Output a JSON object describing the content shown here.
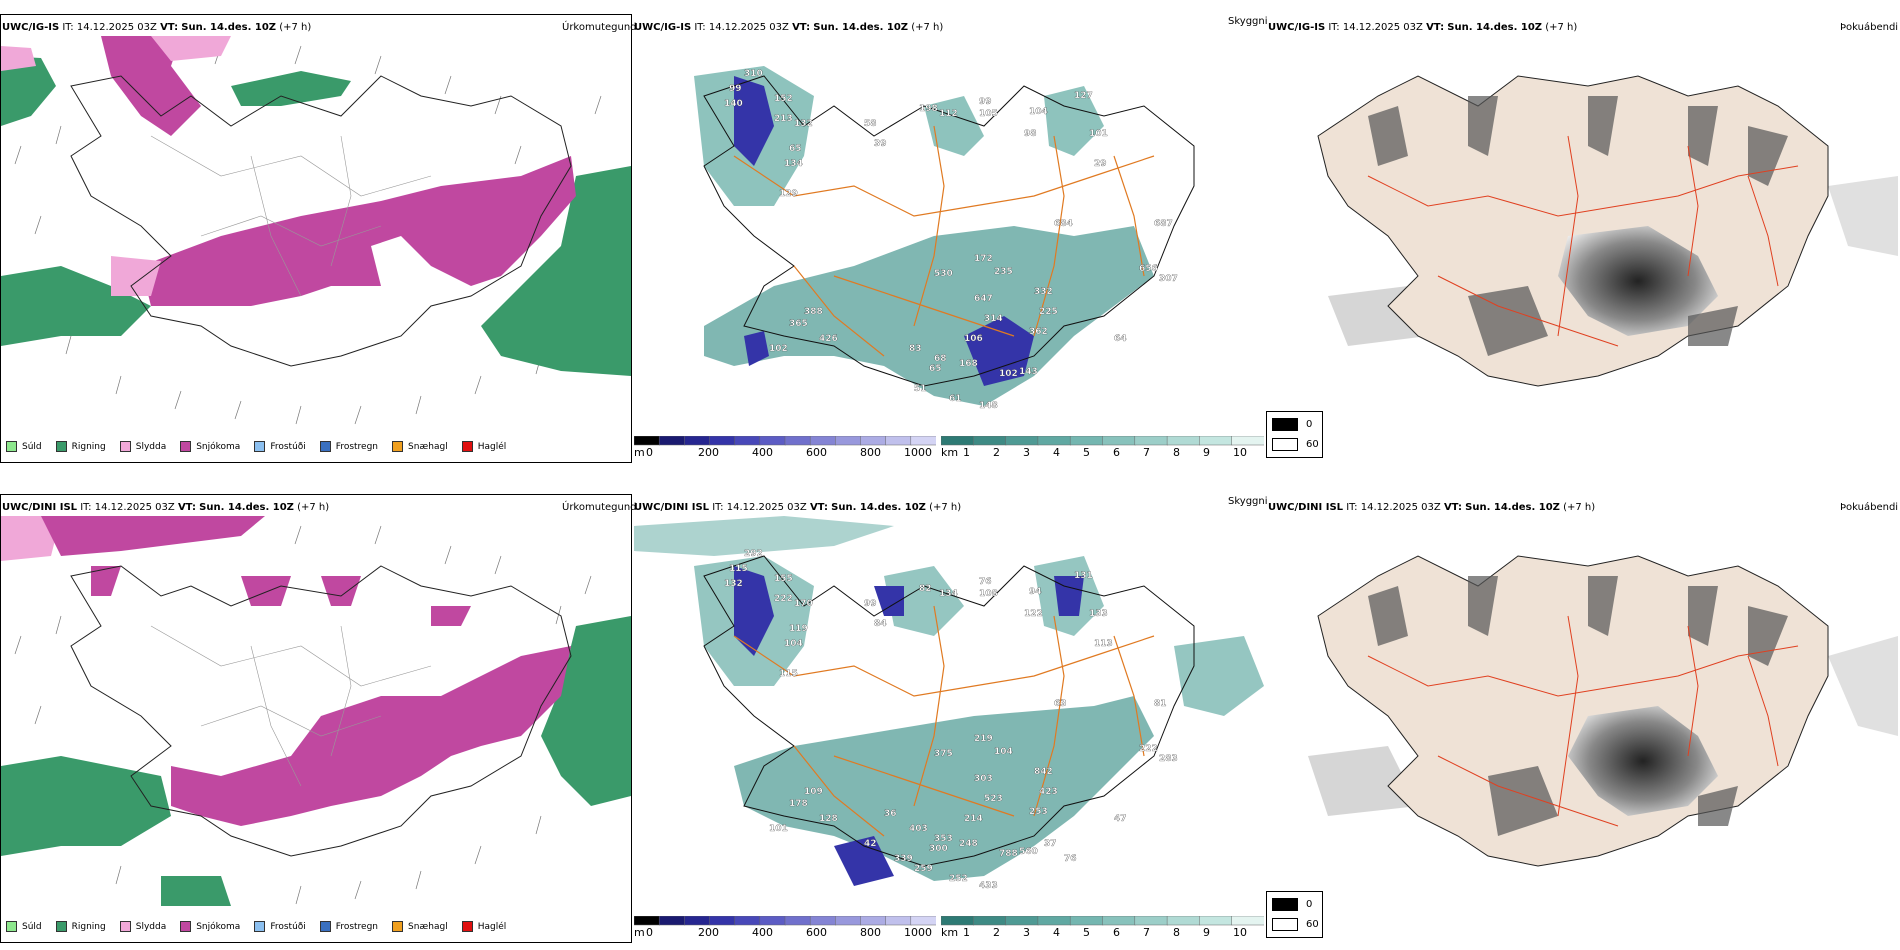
{
  "rows": [
    {
      "model": "UWC/IG-IS",
      "it_label": "IT:",
      "it_value": "14.12.2025 03Z",
      "vt_label": "VT:",
      "vt_value": "Sun. 14.des. 10Z",
      "lead": "(+7 h)"
    },
    {
      "model": "UWC/DINI ISL",
      "it_label": "IT:",
      "it_value": "14.12.2025 03Z",
      "vt_label": "VT:",
      "vt_value": "Sun. 14.des. 10Z",
      "lead": "(+7 h)"
    }
  ],
  "panel_titles": {
    "precip_type": "Úrkomutegund",
    "clouds": "Skyggni",
    "fog": "Þokuábendi"
  },
  "precip_legend": [
    {
      "label": "Súld",
      "color": "#8ee88e"
    },
    {
      "label": "Rigning",
      "color": "#3a9a6a"
    },
    {
      "label": "Slydda",
      "color": "#f0a8d8"
    },
    {
      "label": "Snjókoma",
      "color": "#c048a0"
    },
    {
      "label": "Frostúði",
      "color": "#8cc0f0"
    },
    {
      "label": "Frostregn",
      "color": "#3a70c0"
    },
    {
      "label": "Snæhagl",
      "color": "#f0a020"
    },
    {
      "label": "Haglél",
      "color": "#e01010"
    }
  ],
  "colorbar_m": {
    "unit": "m",
    "ticks": [
      "0",
      "200",
      "400",
      "600",
      "800",
      "1000"
    ],
    "colors": [
      "#000000",
      "#1a1a70",
      "#262690",
      "#3434a8",
      "#4848b8",
      "#5c5cc4",
      "#7070cc",
      "#8484d4",
      "#9898dc",
      "#acace4",
      "#c0c0ec",
      "#d4d4f4"
    ]
  },
  "colorbar_km": {
    "unit": "km",
    "ticks": [
      "1",
      "2",
      "3",
      "4",
      "5",
      "6",
      "7",
      "8",
      "9",
      "10"
    ],
    "colors": [
      "#2e7a74",
      "#3e8a84",
      "#4f9a94",
      "#60a8a2",
      "#74b6b0",
      "#88c2bc",
      "#9ccec8",
      "#b0dad4",
      "#c4e6e0",
      "#e4f4f0"
    ]
  },
  "fog_legend": [
    {
      "label": "0",
      "color": "#000000"
    },
    {
      "label": "60",
      "color": "#ffffff"
    }
  ],
  "cloud_labels_row1": [
    "310",
    "99",
    "152",
    "213",
    "132",
    "134",
    "65",
    "129",
    "140",
    "58",
    "39",
    "198",
    "112",
    "99",
    "105",
    "104",
    "98",
    "127",
    "101",
    "29",
    "684",
    "687",
    "530",
    "172",
    "235",
    "647",
    "314",
    "332",
    "225",
    "362",
    "656",
    "307",
    "83",
    "68",
    "168",
    "106",
    "102",
    "143",
    "148",
    "61",
    "51",
    "65",
    "426",
    "365",
    "388",
    "102",
    "64"
  ],
  "cloud_labels_row2": [
    "292",
    "115",
    "155",
    "222",
    "170",
    "104",
    "119",
    "115",
    "132",
    "99",
    "84",
    "82",
    "134",
    "76",
    "108",
    "94",
    "122",
    "131",
    "133",
    "113",
    "63",
    "81",
    "375",
    "219",
    "104",
    "303",
    "523",
    "842",
    "423",
    "253",
    "222",
    "283",
    "403",
    "353",
    "248",
    "214",
    "788",
    "560",
    "433",
    "252",
    "259",
    "300",
    "128",
    "178",
    "109",
    "101",
    "47",
    "36",
    "42",
    "339",
    "37",
    "76"
  ]
}
